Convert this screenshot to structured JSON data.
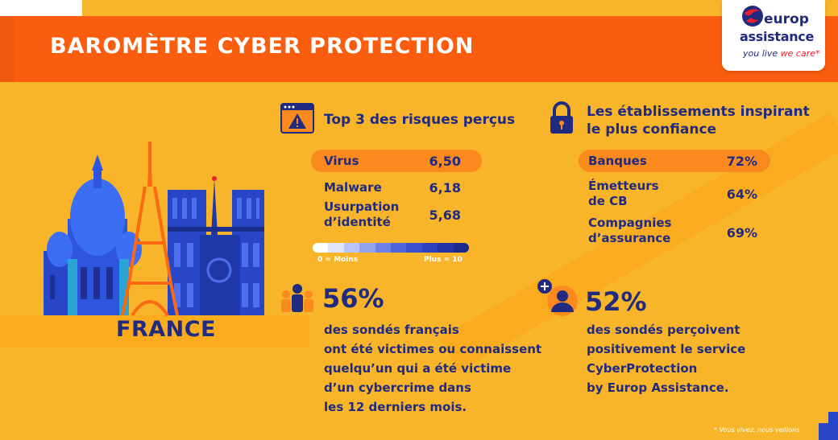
{
  "header": {
    "title": "BAROMÈTRE CYBER PROTECTION"
  },
  "logo": {
    "line1": "europ",
    "line2": "assistance",
    "tagline_a": "you live ",
    "tagline_b": "we care*"
  },
  "country": "FRANCE",
  "risks": {
    "title": "Top 3 des risques perçus",
    "items": [
      {
        "label": "Virus",
        "value": "6,50"
      },
      {
        "label": "Malware",
        "value": "6,18"
      },
      {
        "label": "Usurpation\nd’identité",
        "value": "5,68"
      }
    ],
    "scale_min": "0 = Moins",
    "scale_max": "Plus = 10"
  },
  "trust": {
    "title": "Les établissements inspirant\nle plus confiance",
    "items": [
      {
        "label": "Banques",
        "value": "72%"
      },
      {
        "label": "Émetteurs\nde CB",
        "value": "64%"
      },
      {
        "label": "Compagnies\nd’assurance",
        "value": "69%"
      }
    ]
  },
  "stat_victims": {
    "percent": "56%",
    "text": "des sondés français\nont été victimes ou connaissent\nquelqu’un qui a été victime\nd’un cybercrime dans\nles 12 derniers mois."
  },
  "stat_service": {
    "percent": "52%",
    "text": "des sondés perçoivent\npositivement le service\nCyberProtection\nby Europ Assistance."
  },
  "footnote": "* Vous vivez, nous veillons",
  "colors": {
    "background": "#f9b52a",
    "header": "#fb5d0f",
    "highlight": "#fb8a1e",
    "navy": "#1f2a80",
    "blue": "#2f4bd8"
  },
  "icons": {
    "risks": "browser-warning-icon",
    "trust": "padlock-icon",
    "victims": "people-group-icon",
    "service": "user-plus-icon"
  }
}
